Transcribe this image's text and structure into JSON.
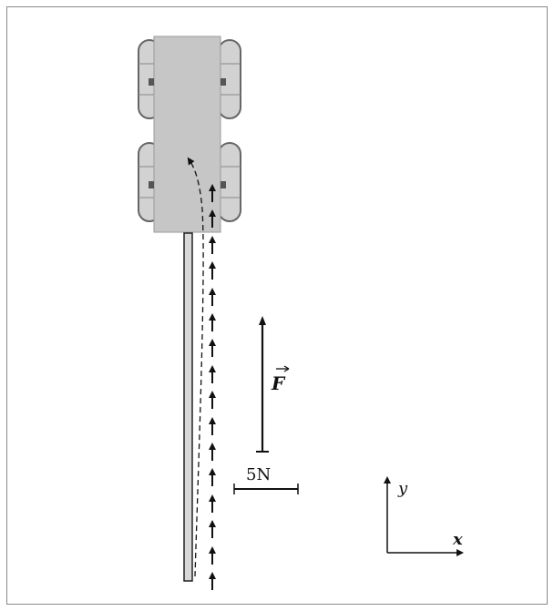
{
  "diagram": {
    "force_label": "F",
    "scale_label": "5N",
    "axis_y_label": "y",
    "axis_x_label": "x",
    "colors": {
      "robot_body": "#c6c6c6",
      "wheel": "#d2d2d2",
      "wheel_stroke": "#666666",
      "rod": "#d8d8d8",
      "ink": "#111111",
      "frame": "#888888"
    }
  }
}
